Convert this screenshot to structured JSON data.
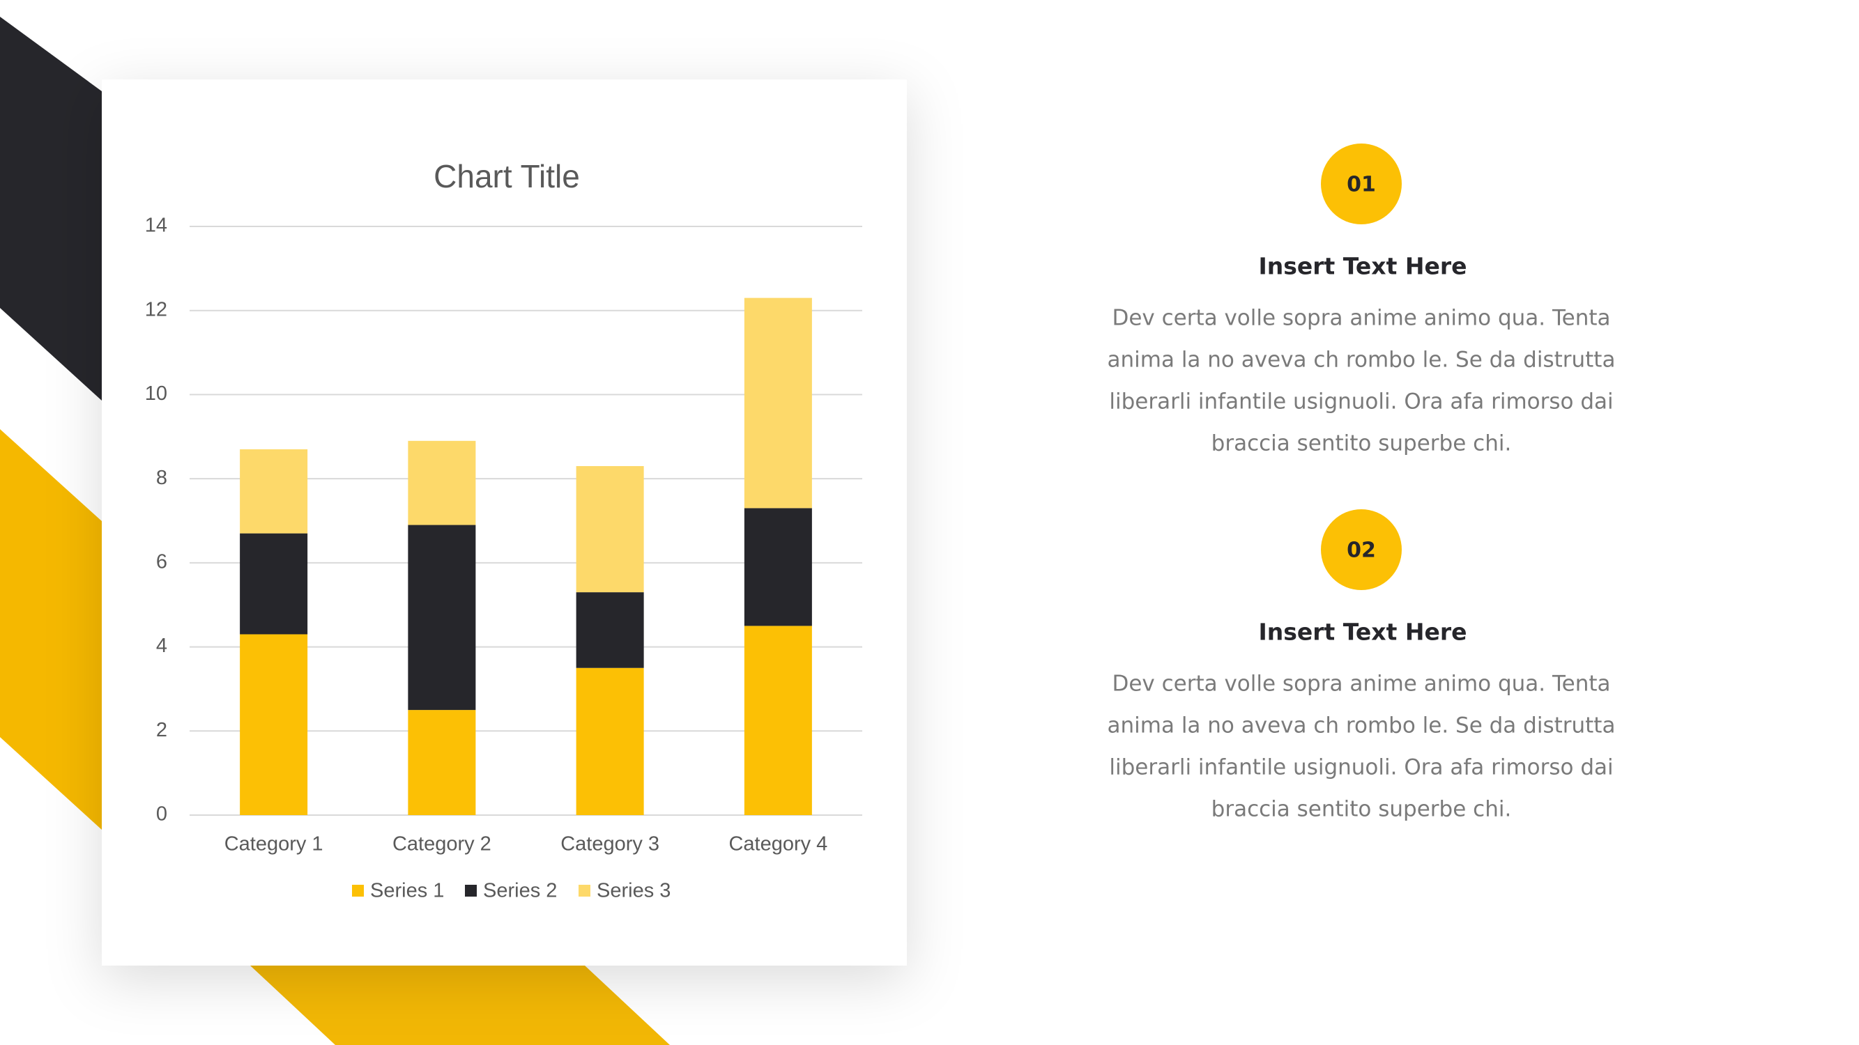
{
  "chart_data": {
    "type": "stacked_bar",
    "title": "Chart Title",
    "categories": [
      "Category 1",
      "Category 2",
      "Category 3",
      "Category 4"
    ],
    "series": [
      {
        "name": "Series 1",
        "color": "#fcc005",
        "values": [
          4.3,
          2.5,
          3.5,
          4.5
        ]
      },
      {
        "name": "Series 2",
        "color": "#26262b",
        "values": [
          2.4,
          4.4,
          1.8,
          2.8
        ]
      },
      {
        "name": "Series 3",
        "color": "#fdd96a",
        "values": [
          2,
          2,
          3,
          5
        ]
      }
    ],
    "ylim": [
      0,
      14
    ],
    "yticks": [
      0,
      2,
      4,
      6,
      8,
      10,
      12,
      14
    ],
    "grid": true,
    "legend": "bottom"
  },
  "items": [
    {
      "number": "01",
      "heading": "Insert Text Here",
      "lines": [
        "Dev certa volle sopra anime animo qua. Tenta",
        "anima la no aveva ch rombo le. Se da distrutta",
        "liberarli infantile usignuoli. Ora afa rimorso dai",
        "braccia sentito superbe chi."
      ]
    },
    {
      "number": "02",
      "heading": "Insert Text Here",
      "lines": [
        "Dev certa volle sopra anime animo qua. Tenta",
        "anima la no aveva ch rombo le. Se da distrutta",
        "liberarli infantile usignuoli. Ora afa rimorso dai",
        "braccia sentito superbe chi."
      ]
    }
  ]
}
